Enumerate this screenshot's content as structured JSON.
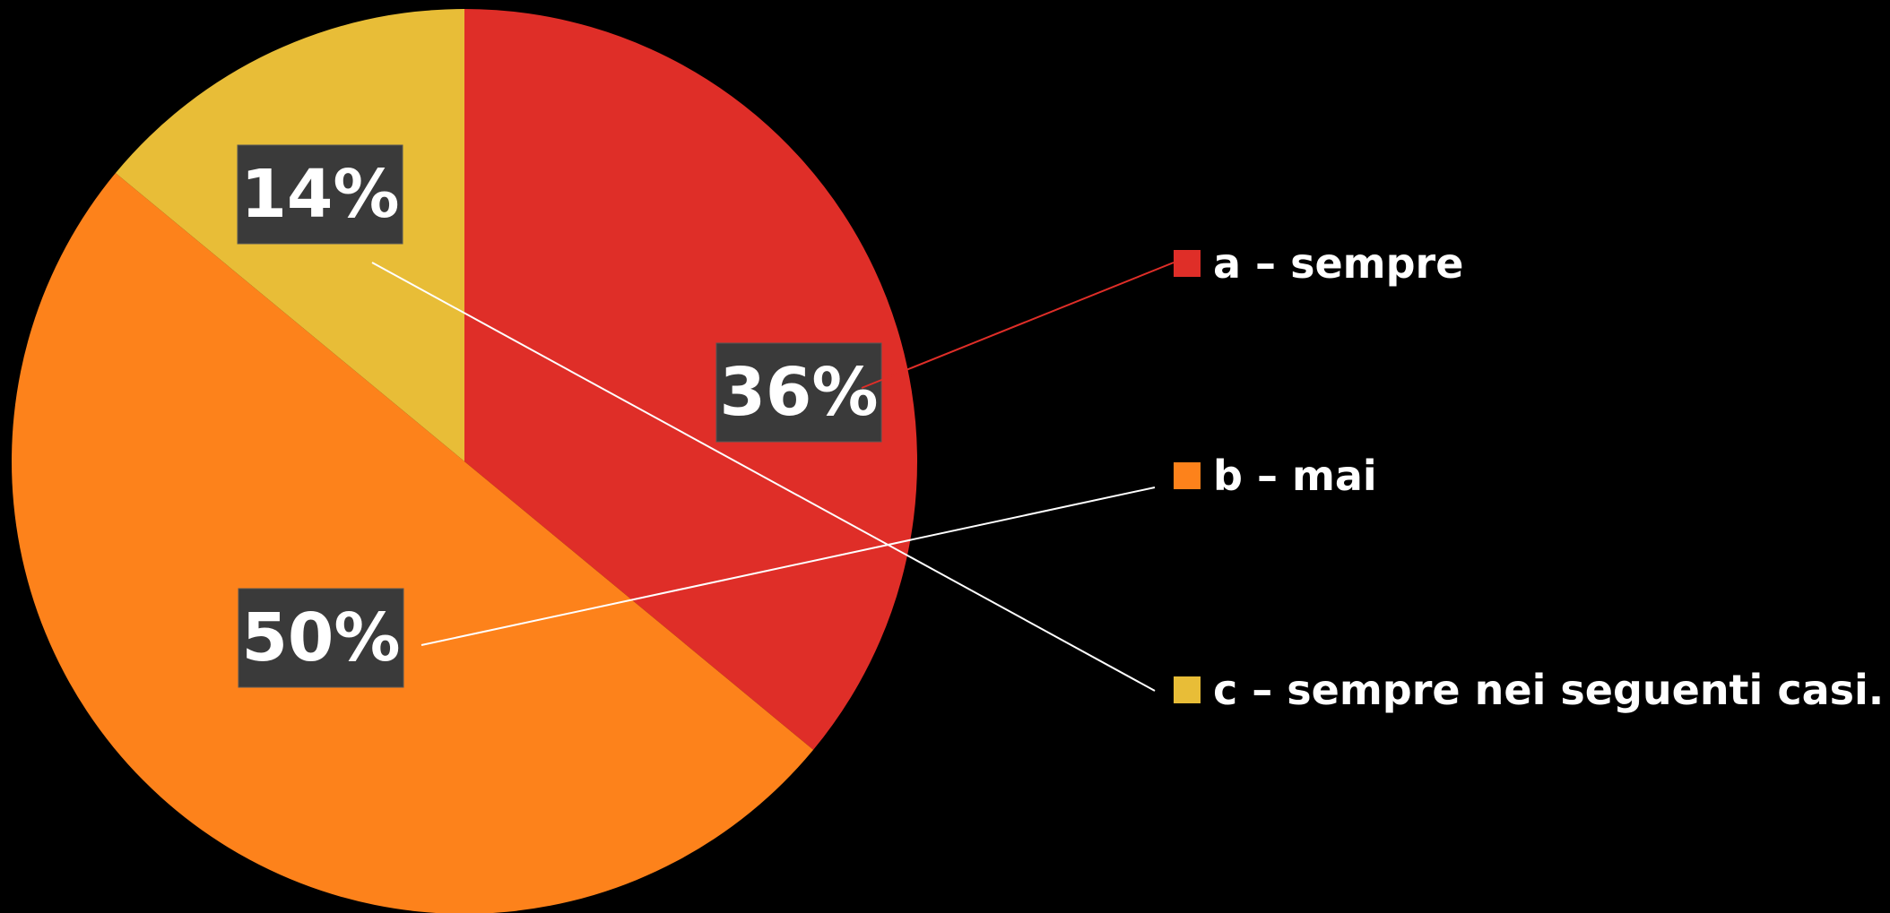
{
  "chart_data": {
    "type": "pie",
    "categories": [
      "a – sempre",
      "b – mai",
      "c – sempre nei seguenti casi."
    ],
    "values": [
      36,
      50,
      14
    ],
    "value_labels": [
      "36%",
      "50%",
      "14%"
    ],
    "colors": [
      "#df2e28",
      "#fd821b",
      "#e8bd37"
    ],
    "legend": "right"
  }
}
